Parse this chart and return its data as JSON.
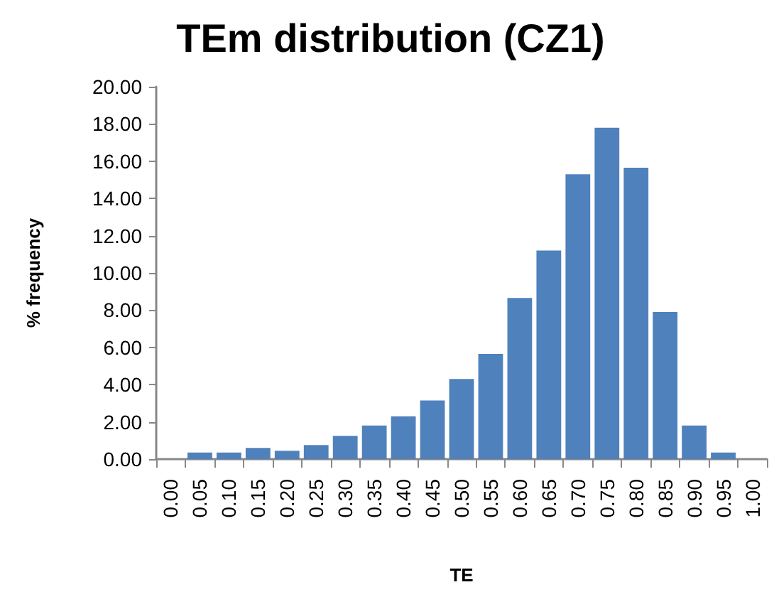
{
  "chart_data": {
    "type": "bar",
    "title": "TEm distribution (CZ1)",
    "xlabel": "TE",
    "ylabel": "% frequency",
    "categories": [
      "0.00",
      "0.05",
      "0.10",
      "0.15",
      "0.20",
      "0.25",
      "0.30",
      "0.35",
      "0.40",
      "0.45",
      "0.50",
      "0.55",
      "0.60",
      "0.65",
      "0.70",
      "0.75",
      "0.80",
      "0.85",
      "0.90",
      "0.95",
      "1.00"
    ],
    "values": [
      0,
      0.35,
      0.35,
      0.6,
      0.45,
      0.75,
      1.25,
      1.8,
      2.3,
      3.15,
      4.3,
      5.65,
      8.65,
      11.2,
      15.3,
      17.8,
      15.65,
      7.9,
      1.8,
      0.35,
      0
    ],
    "color": "#4f81bd",
    "ylim": [
      0,
      20
    ],
    "yticks": [
      {
        "value": 0,
        "label": "0.00"
      },
      {
        "value": 2,
        "label": "2.00"
      },
      {
        "value": 4,
        "label": "4.00"
      },
      {
        "value": 6,
        "label": "6.00"
      },
      {
        "value": 8,
        "label": "8.00"
      },
      {
        "value": 10,
        "label": "10.00"
      },
      {
        "value": 12,
        "label": "12.00"
      },
      {
        "value": 14,
        "label": "14.00"
      },
      {
        "value": 16,
        "label": "16.00"
      },
      {
        "value": 18,
        "label": "18.00"
      },
      {
        "value": 20,
        "label": "20.00"
      }
    ],
    "grid": false
  }
}
